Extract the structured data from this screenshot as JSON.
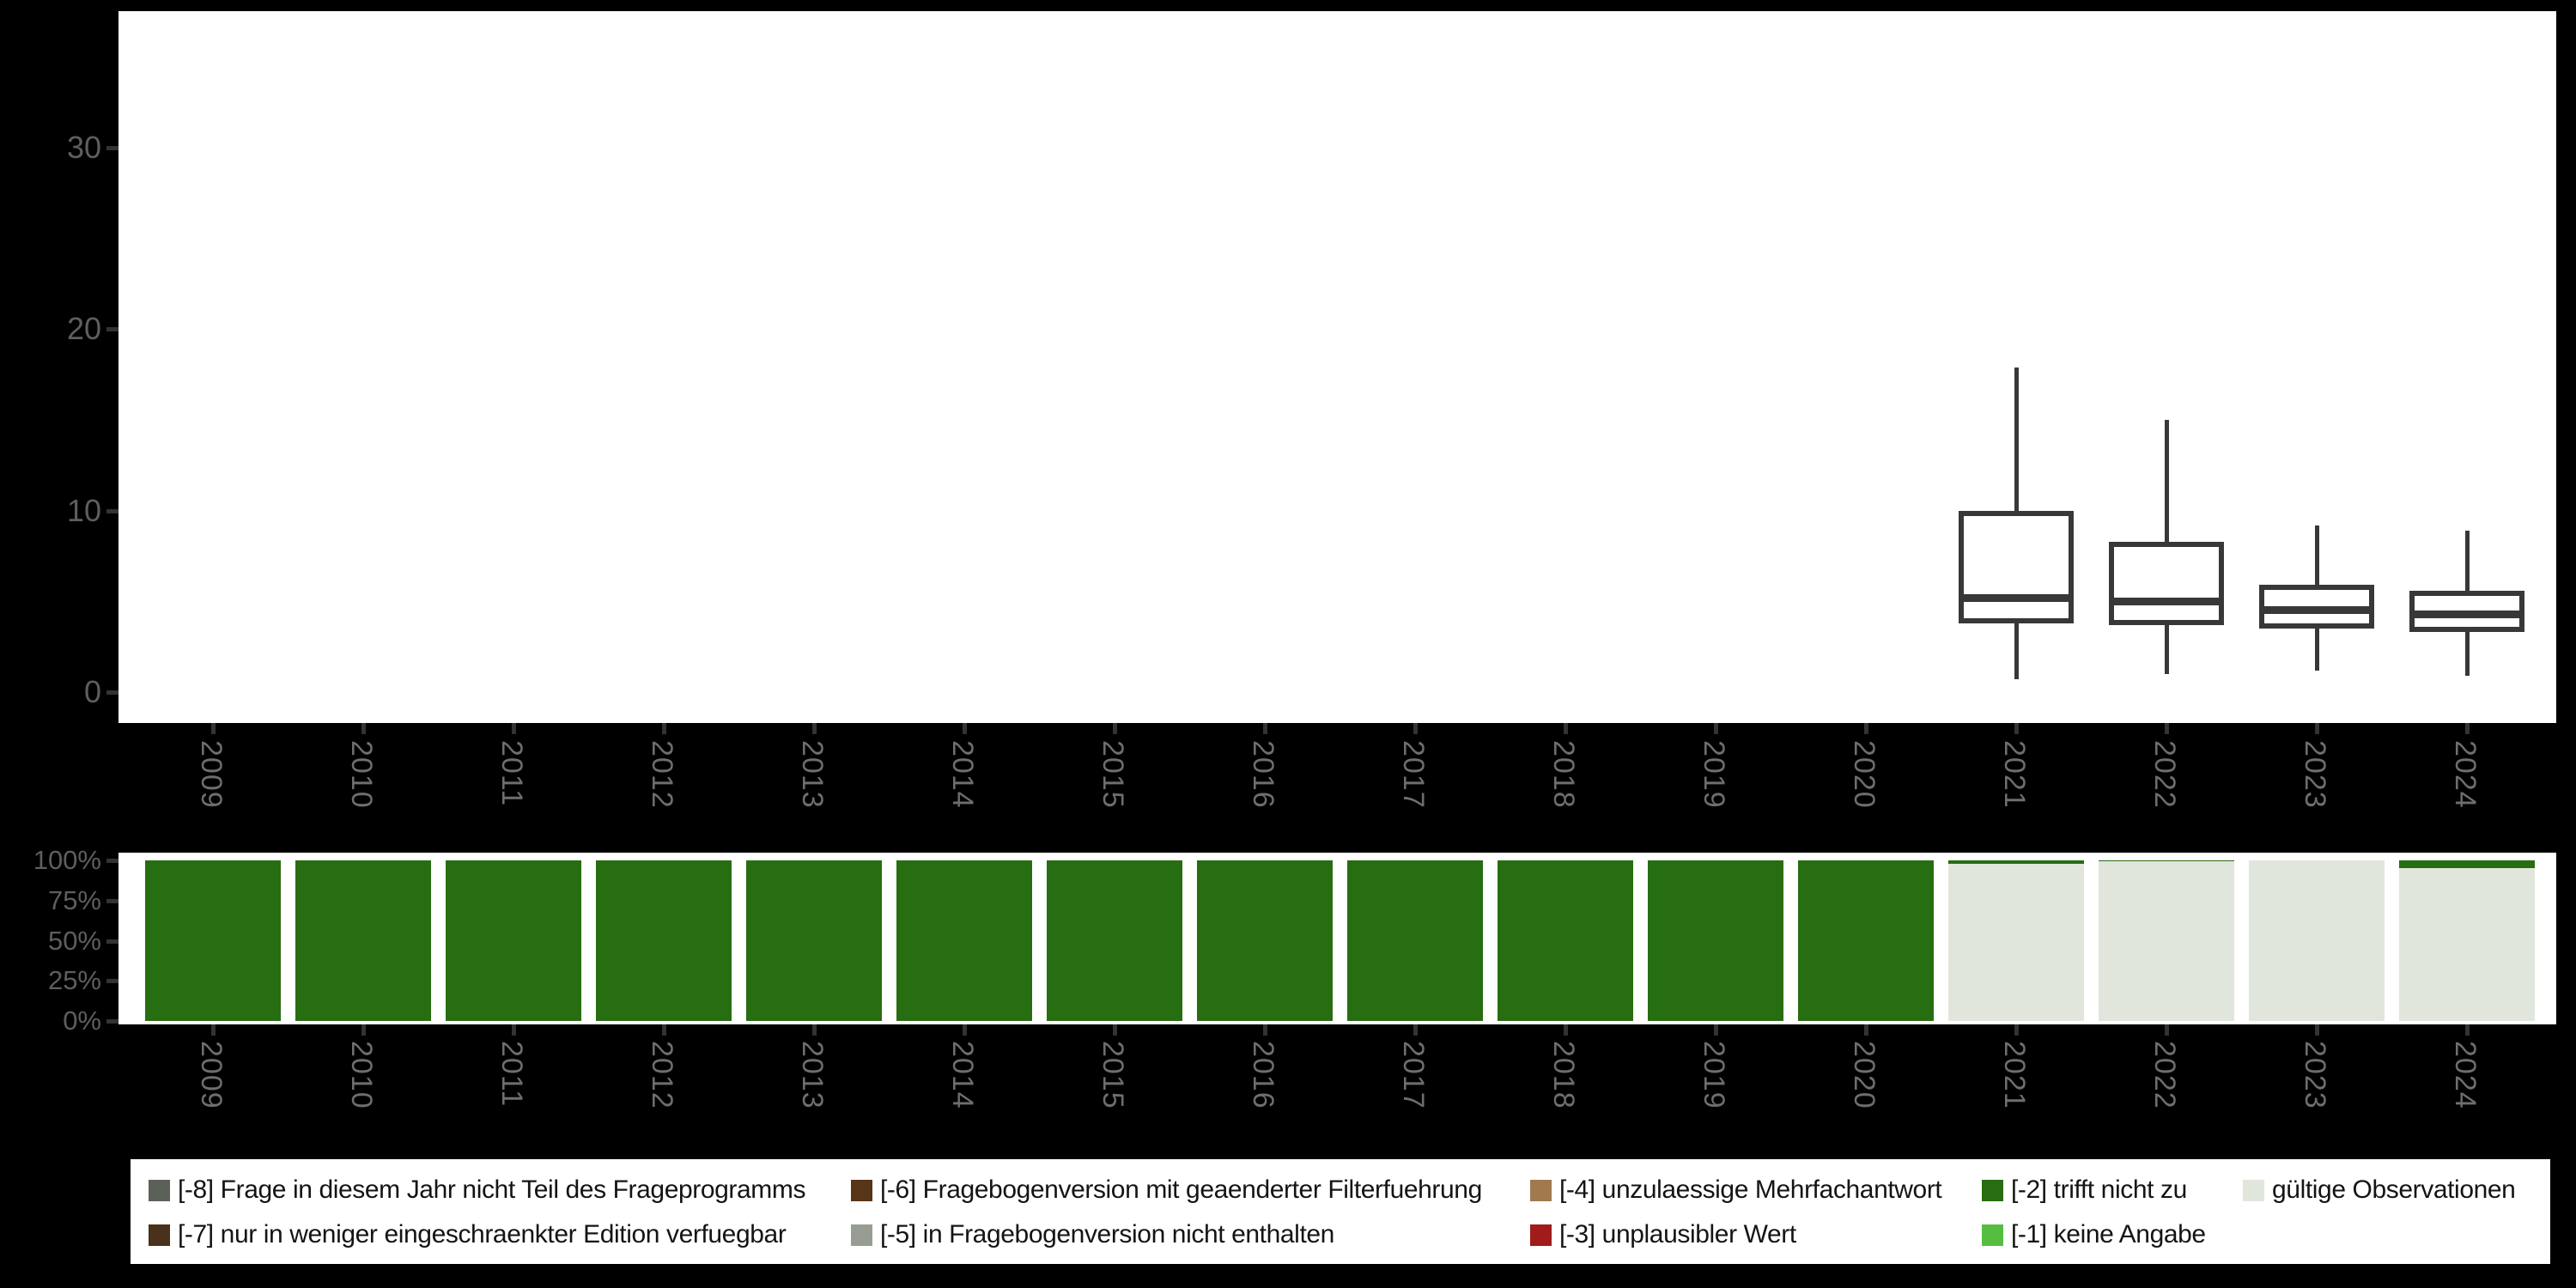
{
  "colors": {
    "background": "#000000",
    "panel_bg": "#ffffff",
    "box_stroke": "#383838",
    "axis_tick": "#333333",
    "axis_number_text": "#5e5e5e",
    "year_text": "#6e6e6e",
    "legend_text": "#141414"
  },
  "categories": [
    "2009",
    "2010",
    "2011",
    "2012",
    "2013",
    "2014",
    "2015",
    "2016",
    "2017",
    "2018",
    "2019",
    "2020",
    "2021",
    "2022",
    "2023",
    "2024"
  ],
  "chart_data": [
    {
      "type": "boxplot",
      "title": "",
      "xlabel": "",
      "ylabel": "",
      "x_categories": [
        "2009",
        "2010",
        "2011",
        "2012",
        "2013",
        "2014",
        "2015",
        "2016",
        "2017",
        "2018",
        "2019",
        "2020",
        "2021",
        "2022",
        "2023",
        "2024"
      ],
      "yticks": [
        "0",
        "10",
        "20",
        "30"
      ],
      "ytick_values": [
        0,
        10,
        20,
        30
      ],
      "ylim": [
        -1.7,
        37.5
      ],
      "grid": false,
      "boxes": [
        {
          "year": "2021",
          "min": 0.7,
          "q1": 3.8,
          "median": 5.2,
          "q3": 10.0,
          "max": 17.9
        },
        {
          "year": "2022",
          "min": 1.0,
          "q1": 3.7,
          "median": 5.0,
          "q3": 8.3,
          "max": 15.0
        },
        {
          "year": "2023",
          "min": 1.2,
          "q1": 3.5,
          "median": 4.5,
          "q3": 5.9,
          "max": 9.2
        },
        {
          "year": "2024",
          "min": 0.9,
          "q1": 3.3,
          "median": 4.3,
          "q3": 5.6,
          "max": 8.9
        }
      ]
    },
    {
      "type": "bar",
      "stacked": true,
      "title": "",
      "xlabel": "",
      "ylabel": "",
      "x_categories": [
        "2009",
        "2010",
        "2011",
        "2012",
        "2013",
        "2014",
        "2015",
        "2016",
        "2017",
        "2018",
        "2019",
        "2020",
        "2021",
        "2022",
        "2023",
        "2024"
      ],
      "yticks": [
        "0%",
        "25%",
        "50%",
        "75%",
        "100%"
      ],
      "ytick_values": [
        0,
        25,
        50,
        75,
        100
      ],
      "ylim": [
        0,
        100
      ],
      "grid": false,
      "segment_colors": {
        "trifft_nicht_zu": "#276d11",
        "gueltige_observationen": "#e1e6dc"
      },
      "bars": [
        {
          "year": "2009",
          "segments": [
            {
              "key": "trifft_nicht_zu",
              "pct": 100
            }
          ]
        },
        {
          "year": "2010",
          "segments": [
            {
              "key": "trifft_nicht_zu",
              "pct": 100
            }
          ]
        },
        {
          "year": "2011",
          "segments": [
            {
              "key": "trifft_nicht_zu",
              "pct": 100
            }
          ]
        },
        {
          "year": "2012",
          "segments": [
            {
              "key": "trifft_nicht_zu",
              "pct": 100
            }
          ]
        },
        {
          "year": "2013",
          "segments": [
            {
              "key": "trifft_nicht_zu",
              "pct": 100
            }
          ]
        },
        {
          "year": "2014",
          "segments": [
            {
              "key": "trifft_nicht_zu",
              "pct": 100
            }
          ]
        },
        {
          "year": "2015",
          "segments": [
            {
              "key": "trifft_nicht_zu",
              "pct": 100
            }
          ]
        },
        {
          "year": "2016",
          "segments": [
            {
              "key": "trifft_nicht_zu",
              "pct": 100
            }
          ]
        },
        {
          "year": "2017",
          "segments": [
            {
              "key": "trifft_nicht_zu",
              "pct": 100
            }
          ]
        },
        {
          "year": "2018",
          "segments": [
            {
              "key": "trifft_nicht_zu",
              "pct": 100
            }
          ]
        },
        {
          "year": "2019",
          "segments": [
            {
              "key": "trifft_nicht_zu",
              "pct": 100
            }
          ]
        },
        {
          "year": "2020",
          "segments": [
            {
              "key": "trifft_nicht_zu",
              "pct": 100
            }
          ]
        },
        {
          "year": "2021",
          "segments": [
            {
              "key": "trifft_nicht_zu",
              "pct": 2
            },
            {
              "key": "gueltige_observationen",
              "pct": 98
            }
          ]
        },
        {
          "year": "2022",
          "segments": [
            {
              "key": "trifft_nicht_zu",
              "pct": 0.6
            },
            {
              "key": "gueltige_observationen",
              "pct": 99.4
            }
          ]
        },
        {
          "year": "2023",
          "segments": [
            {
              "key": "gueltige_observationen",
              "pct": 100
            }
          ]
        },
        {
          "year": "2024",
          "segments": [
            {
              "key": "trifft_nicht_zu",
              "pct": 5
            },
            {
              "key": "gueltige_observationen",
              "pct": 95
            }
          ]
        }
      ]
    }
  ],
  "legend": {
    "columns": [
      {
        "items": [
          {
            "code": "-8",
            "label": "[-8] Frage in diesem Jahr nicht Teil des Frageprogramms",
            "color": "#5b6158"
          },
          {
            "code": "-7",
            "label": "[-7] nur in weniger eingeschraenkter Edition verfuegbar",
            "color": "#49311b"
          }
        ]
      },
      {
        "items": [
          {
            "code": "-6",
            "label": "[-6] Fragebogenversion mit geaenderter Filterfuehrung",
            "color": "#573517"
          },
          {
            "code": "-5",
            "label": "[-5] in Fragebogenversion nicht enthalten",
            "color": "#979d93"
          }
        ]
      },
      {
        "items": [
          {
            "code": "-4",
            "label": "[-4] unzulaessige Mehrfachantwort",
            "color": "#a07a4e"
          },
          {
            "code": "-3",
            "label": "[-3] unplausibler Wert",
            "color": "#a11b1b"
          }
        ]
      },
      {
        "items": [
          {
            "code": "-2",
            "label": "[-2] trifft nicht zu",
            "color": "#276d11"
          },
          {
            "code": "-1",
            "label": "[-1] keine Angabe",
            "color": "#55bd40"
          }
        ]
      },
      {
        "items": [
          {
            "code": "valid",
            "label": "gültige Observationen",
            "color": "#e1e6dc"
          }
        ]
      }
    ]
  }
}
